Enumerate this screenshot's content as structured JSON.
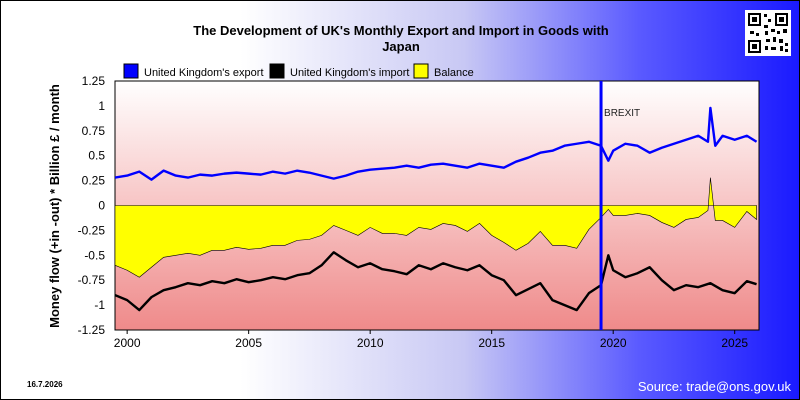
{
  "chart_data": {
    "type": "line",
    "title_line1": "The Development of UK's Monthly Export and Import in Goods with",
    "title_line2": "Japan",
    "ylabel": "Money flow (+in -out) * Billion £ / month",
    "ylim": [
      -1.25,
      1.25
    ],
    "xlim": [
      1999.5,
      2026.0
    ],
    "y_ticks": [
      "1.25",
      "1",
      "0.75",
      "0.5",
      "0.25",
      "0",
      "-0.25",
      "-0.5",
      "-0.75",
      "-1",
      "-1.25"
    ],
    "x_ticks": [
      "2000",
      "2005",
      "2010",
      "2015",
      "2020",
      "2025"
    ],
    "annotation": "BREXIT",
    "annotation_x": 2019.5,
    "series": [
      {
        "name": "United Kingdom's export",
        "color": "#0000ff",
        "x": [
          1999.5,
          2000.0,
          2000.5,
          2001.0,
          2001.5,
          2002.0,
          2002.5,
          2003.0,
          2003.5,
          2004.0,
          2004.5,
          2005.0,
          2005.5,
          2006.0,
          2006.5,
          2007.0,
          2007.5,
          2008.0,
          2008.5,
          2009.0,
          2009.5,
          2010.0,
          2010.5,
          2011.0,
          2011.5,
          2012.0,
          2012.5,
          2013.0,
          2013.5,
          2014.0,
          2014.5,
          2015.0,
          2015.5,
          2016.0,
          2016.5,
          2017.0,
          2017.5,
          2018.0,
          2018.5,
          2019.0,
          2019.5,
          2019.8,
          2020.0,
          2020.5,
          2021.0,
          2021.5,
          2022.0,
          2022.5,
          2023.0,
          2023.5,
          2023.9,
          2024.0,
          2024.2,
          2024.5,
          2025.0,
          2025.5,
          2025.9
        ],
        "values": [
          0.28,
          0.3,
          0.34,
          0.26,
          0.35,
          0.3,
          0.28,
          0.31,
          0.3,
          0.32,
          0.33,
          0.32,
          0.31,
          0.34,
          0.32,
          0.35,
          0.33,
          0.3,
          0.27,
          0.3,
          0.34,
          0.36,
          0.37,
          0.38,
          0.4,
          0.38,
          0.41,
          0.42,
          0.4,
          0.38,
          0.42,
          0.4,
          0.38,
          0.44,
          0.48,
          0.53,
          0.55,
          0.6,
          0.62,
          0.64,
          0.6,
          0.45,
          0.55,
          0.62,
          0.6,
          0.53,
          0.58,
          0.62,
          0.66,
          0.7,
          0.64,
          0.98,
          0.6,
          0.7,
          0.66,
          0.7,
          0.64
        ]
      },
      {
        "name": "United Kingdom's import",
        "color": "#000000",
        "x": [
          1999.5,
          2000.0,
          2000.5,
          2001.0,
          2001.5,
          2002.0,
          2002.5,
          2003.0,
          2003.5,
          2004.0,
          2004.5,
          2005.0,
          2005.5,
          2006.0,
          2006.5,
          2007.0,
          2007.5,
          2008.0,
          2008.5,
          2009.0,
          2009.5,
          2010.0,
          2010.5,
          2011.0,
          2011.5,
          2012.0,
          2012.5,
          2013.0,
          2013.5,
          2014.0,
          2014.5,
          2015.0,
          2015.5,
          2016.0,
          2016.5,
          2017.0,
          2017.5,
          2018.0,
          2018.5,
          2019.0,
          2019.5,
          2019.8,
          2020.0,
          2020.5,
          2021.0,
          2021.5,
          2022.0,
          2022.5,
          2023.0,
          2023.5,
          2024.0,
          2024.5,
          2025.0,
          2025.5,
          2025.9
        ],
        "values": [
          -0.9,
          -0.95,
          -1.05,
          -0.92,
          -0.85,
          -0.82,
          -0.78,
          -0.8,
          -0.76,
          -0.78,
          -0.74,
          -0.77,
          -0.75,
          -0.72,
          -0.74,
          -0.7,
          -0.68,
          -0.6,
          -0.47,
          -0.55,
          -0.62,
          -0.58,
          -0.64,
          -0.66,
          -0.69,
          -0.6,
          -0.64,
          -0.58,
          -0.62,
          -0.65,
          -0.6,
          -0.7,
          -0.75,
          -0.9,
          -0.84,
          -0.78,
          -0.95,
          -1.0,
          -1.05,
          -0.88,
          -0.8,
          -0.5,
          -0.65,
          -0.72,
          -0.68,
          -0.62,
          -0.75,
          -0.85,
          -0.8,
          -0.82,
          -0.78,
          -0.85,
          -0.88,
          -0.76,
          -0.79
        ]
      },
      {
        "name": "Balance",
        "color": "#ffff00",
        "x": [
          1999.5,
          2000.0,
          2000.5,
          2001.0,
          2001.5,
          2002.0,
          2002.5,
          2003.0,
          2003.5,
          2004.0,
          2004.5,
          2005.0,
          2005.5,
          2006.0,
          2006.5,
          2007.0,
          2007.5,
          2008.0,
          2008.5,
          2009.0,
          2009.5,
          2010.0,
          2010.5,
          2011.0,
          2011.5,
          2012.0,
          2012.5,
          2013.0,
          2013.5,
          2014.0,
          2014.5,
          2015.0,
          2015.5,
          2016.0,
          2016.5,
          2017.0,
          2017.5,
          2018.0,
          2018.5,
          2019.0,
          2019.5,
          2019.8,
          2020.0,
          2020.5,
          2021.0,
          2021.5,
          2022.0,
          2022.5,
          2023.0,
          2023.5,
          2023.9,
          2024.0,
          2024.2,
          2024.5,
          2025.0,
          2025.5,
          2025.9
        ],
        "values": [
          -0.6,
          -0.65,
          -0.72,
          -0.62,
          -0.52,
          -0.5,
          -0.48,
          -0.5,
          -0.45,
          -0.45,
          -0.42,
          -0.44,
          -0.43,
          -0.4,
          -0.4,
          -0.35,
          -0.34,
          -0.3,
          -0.2,
          -0.25,
          -0.3,
          -0.22,
          -0.28,
          -0.28,
          -0.3,
          -0.22,
          -0.24,
          -0.18,
          -0.2,
          -0.26,
          -0.18,
          -0.3,
          -0.37,
          -0.45,
          -0.38,
          -0.26,
          -0.4,
          -0.4,
          -0.43,
          -0.24,
          -0.12,
          -0.04,
          -0.1,
          -0.1,
          -0.08,
          -0.1,
          -0.17,
          -0.22,
          -0.14,
          -0.12,
          -0.05,
          0.28,
          -0.15,
          -0.15,
          -0.22,
          -0.06,
          -0.14
        ]
      }
    ]
  },
  "footer": {
    "date": "16.7.2026",
    "source": "Source: trade@ons.gov.uk"
  }
}
